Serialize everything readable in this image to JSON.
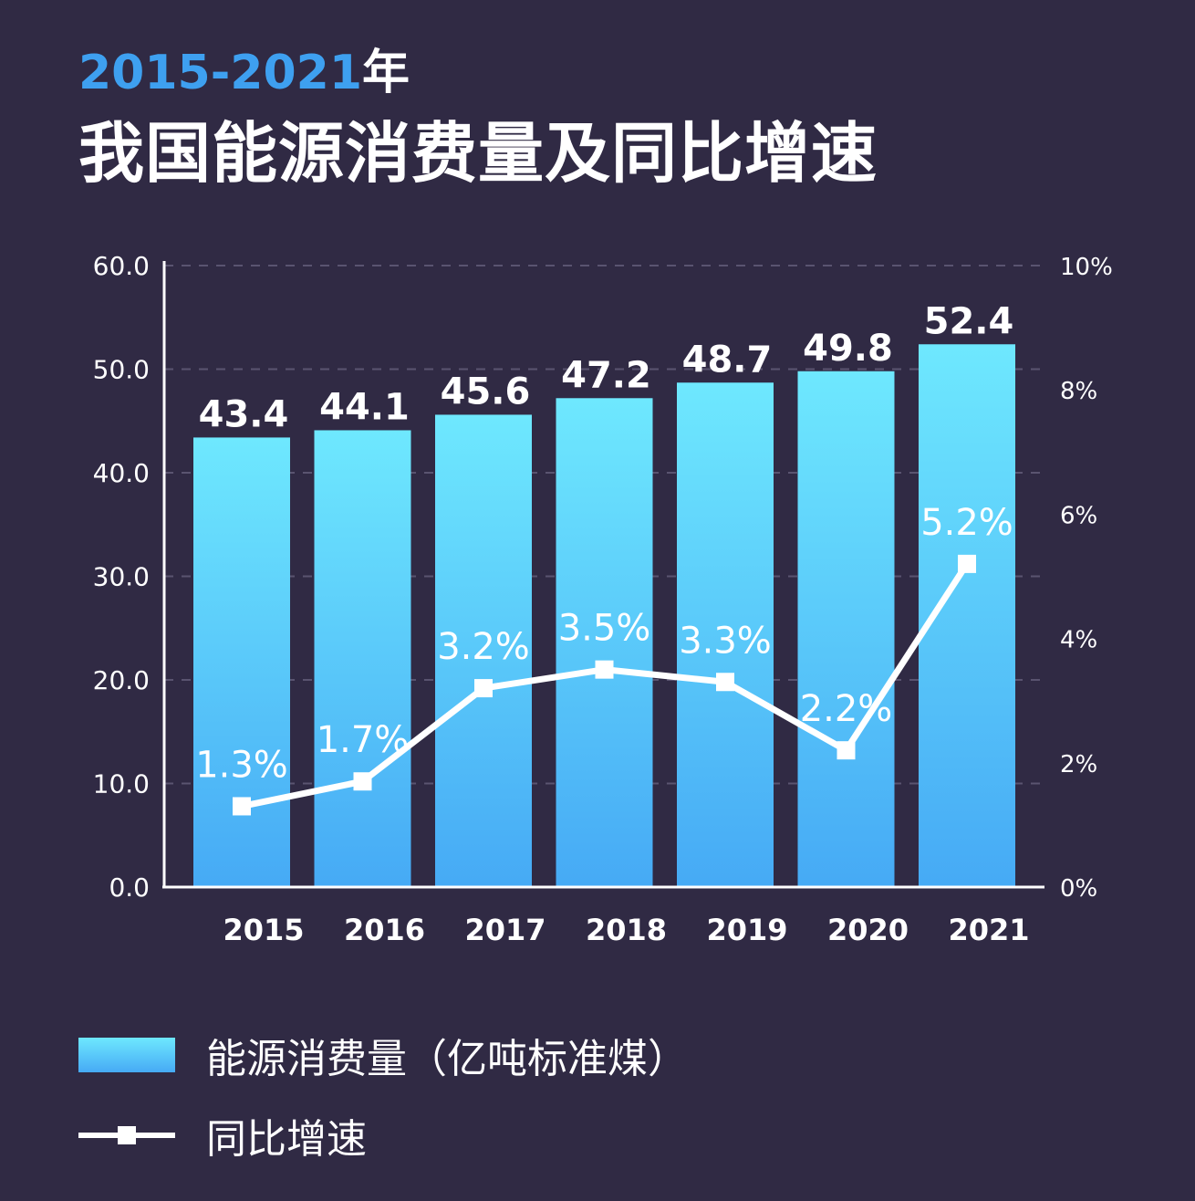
{
  "header": {
    "year_range": "2015-2021",
    "year_suffix": "年",
    "title": "我国能源消费量及同比增速"
  },
  "legend": {
    "bar_label": "能源消费量（亿吨标准煤）",
    "line_label": "同比增速"
  },
  "colors": {
    "background": "#302a44",
    "bar_top": "#6ee8fe",
    "bar_bottom": "#46aaf5",
    "line": "#ffffff",
    "accent_title": "#3ea0f0",
    "axis": "#ffffff",
    "grid": "#5a5470"
  },
  "chart_data": {
    "type": "bar",
    "categories": [
      "2015",
      "2016",
      "2017",
      "2018",
      "2019",
      "2020",
      "2021"
    ],
    "series": [
      {
        "type": "bar",
        "axis": "left",
        "values": [
          43.4,
          44.1,
          45.6,
          47.2,
          48.7,
          49.8,
          52.4
        ],
        "labels": [
          "43.4",
          "44.1",
          "45.6",
          "47.2",
          "48.7",
          "49.8",
          "52.4"
        ]
      },
      {
        "type": "line",
        "axis": "right",
        "values": [
          1.3,
          1.7,
          3.2,
          3.5,
          3.3,
          2.2,
          5.2
        ],
        "labels": [
          "1.3%",
          "1.7%",
          "3.2%",
          "3.5%",
          "3.3%",
          "2.2%",
          "5.2%"
        ]
      }
    ],
    "y_left": {
      "range": [
        0,
        60
      ],
      "ticks": [
        "0.0",
        "10.0",
        "20.0",
        "30.0",
        "40.0",
        "50.0",
        "60.0"
      ]
    },
    "y_right": {
      "range": [
        0,
        10
      ],
      "ticks": [
        "0%",
        "2%",
        "4%",
        "6%",
        "8%",
        "10%"
      ]
    },
    "grid": true,
    "grid_style": "dashed",
    "legend_position": "bottom-left"
  }
}
